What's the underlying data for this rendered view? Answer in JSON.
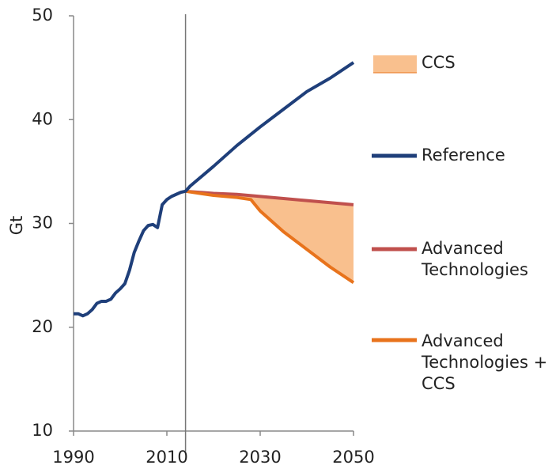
{
  "chart_data": {
    "type": "line",
    "ylabel": "Gt",
    "xlim": [
      1990,
      2050
    ],
    "xticks": [
      1990,
      2010,
      2030,
      2050
    ],
    "ylim": [
      10,
      50
    ],
    "yticks": [
      10,
      20,
      30,
      40,
      50
    ],
    "vline": 2014,
    "area": {
      "name": "CCS",
      "color": "#f9c08e",
      "between": [
        1,
        2
      ]
    },
    "series": [
      {
        "name": "Reference",
        "color": "#1f3f7a",
        "x": [
          1990,
          1991,
          1992,
          1993,
          1994,
          1995,
          1996,
          1997,
          1998,
          1999,
          2000,
          2001,
          2002,
          2003,
          2004,
          2005,
          2006,
          2007,
          2008,
          2009,
          2010,
          2011,
          2012,
          2013,
          2014,
          2015,
          2020,
          2025,
          2030,
          2035,
          2040,
          2045,
          2050
        ],
        "values": [
          21.3,
          21.3,
          21.1,
          21.3,
          21.7,
          22.3,
          22.5,
          22.5,
          22.7,
          23.3,
          23.7,
          24.2,
          25.5,
          27.2,
          28.3,
          29.3,
          29.8,
          29.9,
          29.6,
          31.8,
          32.3,
          32.6,
          32.8,
          33.0,
          33.1,
          33.6,
          35.5,
          37.5,
          39.3,
          41.0,
          42.7,
          44.0,
          45.5
        ]
      },
      {
        "name": "Advanced Technologies",
        "color": "#c0504d",
        "x": [
          2014,
          2020,
          2025,
          2030,
          2035,
          2040,
          2045,
          2050
        ],
        "values": [
          33.1,
          32.9,
          32.8,
          32.6,
          32.4,
          32.2,
          32.0,
          31.8
        ]
      },
      {
        "name": "Advanced Technologies + CCS",
        "color": "#e8731c",
        "x": [
          2014,
          2020,
          2025,
          2028,
          2030,
          2035,
          2040,
          2045,
          2050
        ],
        "values": [
          33.1,
          32.7,
          32.5,
          32.3,
          31.2,
          29.2,
          27.5,
          25.8,
          24.3
        ]
      }
    ]
  }
}
